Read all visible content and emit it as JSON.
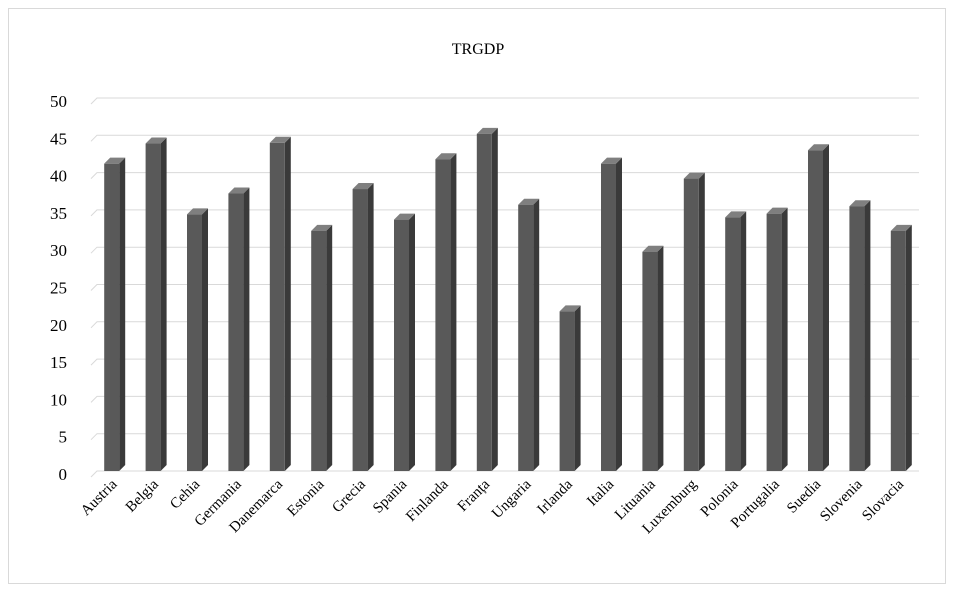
{
  "chart_data": {
    "type": "bar",
    "title": "TRGDP",
    "xlabel": "",
    "ylabel": "",
    "ylim": [
      0,
      50
    ],
    "yticks": [
      0,
      5,
      10,
      15,
      20,
      25,
      30,
      35,
      40,
      45,
      50
    ],
    "grid": true,
    "legend": "none",
    "bar_color": "#595959",
    "categories": [
      "Austria",
      "Belgia",
      "Cehia",
      "Germania",
      "Danemarca",
      "Estonia",
      "Grecia",
      "Spania",
      "Finlanda",
      "Franța",
      "Ungaria",
      "Irlanda",
      "Italia",
      "Lituania",
      "Luxemburg",
      "Polonia",
      "Portugalia",
      "Suedia",
      "Slovenia",
      "Slovacia"
    ],
    "values": [
      42,
      44.7,
      35.2,
      38,
      44.8,
      33,
      38.6,
      34.5,
      42.6,
      46,
      36.5,
      22.2,
      42,
      30.2,
      40,
      34.8,
      35.3,
      43.8,
      36.3,
      33
    ]
  }
}
